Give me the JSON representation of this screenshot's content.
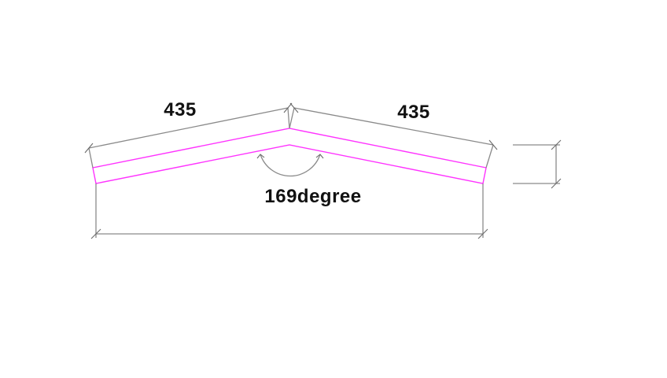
{
  "diagram": {
    "left_length_label": "435",
    "right_length_label": "435",
    "angle_label": "169degree",
    "angle_value_degrees": 169,
    "left_length_value": 435,
    "right_length_value": 435
  },
  "colors": {
    "profile": "#ff33ff",
    "dimension": "#8a8a8a",
    "text": "#111111",
    "background": "#ffffff"
  }
}
